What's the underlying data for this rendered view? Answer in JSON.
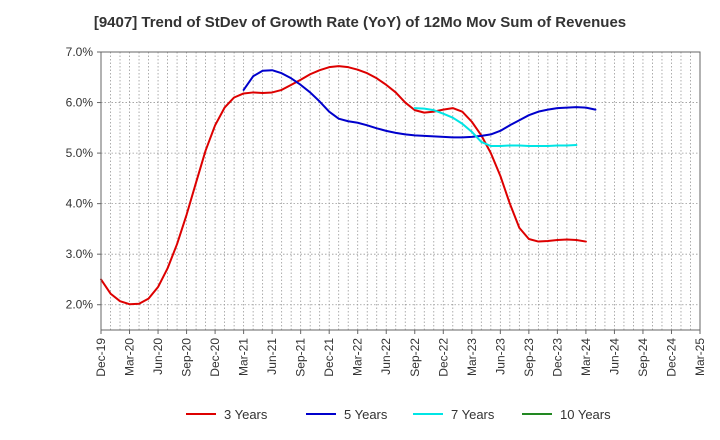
{
  "chart_data": {
    "type": "line",
    "title": "[9407]  Trend of StDev of Growth Rate (YoY) of 12Mo Mov Sum of Revenues",
    "xlabel": "",
    "ylabel": "",
    "ylim": [
      1.5,
      7.0
    ],
    "yticks": [
      2.0,
      3.0,
      4.0,
      5.0,
      6.0,
      7.0
    ],
    "ytick_labels": [
      "2.0%",
      "3.0%",
      "4.0%",
      "5.0%",
      "6.0%",
      "7.0%"
    ],
    "x_tick_labels": [
      "Dec-19",
      "Mar-20",
      "Jun-20",
      "Sep-20",
      "Dec-20",
      "Mar-21",
      "Jun-21",
      "Sep-21",
      "Dec-21",
      "Mar-22",
      "Jun-22",
      "Sep-22",
      "Dec-22",
      "Mar-23",
      "Jun-23",
      "Sep-23",
      "Dec-23",
      "Mar-24",
      "Jun-24",
      "Sep-24",
      "Dec-24",
      "Mar-25"
    ],
    "grid": true,
    "legend_position": "bottom",
    "series": [
      {
        "name": "3 Years",
        "color": "#dd0000",
        "start_index": 0,
        "values": [
          2.5,
          2.22,
          2.07,
          2.01,
          2.02,
          2.12,
          2.35,
          2.72,
          3.2,
          3.78,
          4.42,
          5.05,
          5.55,
          5.9,
          6.1,
          6.18,
          6.2,
          6.19,
          6.2,
          6.25,
          6.35,
          6.45,
          6.56,
          6.64,
          6.7,
          6.72,
          6.7,
          6.65,
          6.58,
          6.48,
          6.35,
          6.2,
          6.0,
          5.85,
          5.8,
          5.82,
          5.86,
          5.89,
          5.82,
          5.62,
          5.35,
          5.0,
          4.55,
          4.0,
          3.52,
          3.3,
          3.25,
          3.26,
          3.28,
          3.29,
          3.28,
          3.25
        ]
      },
      {
        "name": "5 Years",
        "color": "#0000cc",
        "start_index": 15,
        "values": [
          6.25,
          6.52,
          6.63,
          6.64,
          6.58,
          6.48,
          6.35,
          6.2,
          6.02,
          5.82,
          5.68,
          5.63,
          5.6,
          5.55,
          5.49,
          5.44,
          5.4,
          5.37,
          5.35,
          5.34,
          5.33,
          5.32,
          5.31,
          5.31,
          5.32,
          5.34,
          5.37,
          5.44,
          5.55,
          5.65,
          5.75,
          5.82,
          5.86,
          5.89,
          5.9,
          5.91,
          5.9,
          5.86
        ]
      },
      {
        "name": "7 Years",
        "color": "#00e5e5",
        "start_index": 33,
        "values": [
          5.89,
          5.88,
          5.85,
          5.78,
          5.7,
          5.58,
          5.42,
          5.22,
          5.14,
          5.14,
          5.15,
          5.15,
          5.14,
          5.14,
          5.14,
          5.15,
          5.15,
          5.16
        ]
      },
      {
        "name": "10 Years",
        "color": "#228822",
        "start_index": 0,
        "values": []
      }
    ]
  }
}
